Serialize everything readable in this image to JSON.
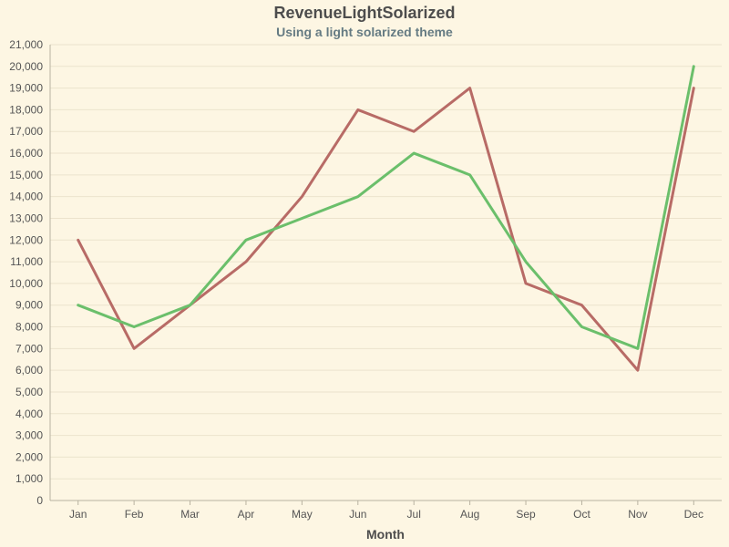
{
  "chart_data": {
    "type": "line",
    "title": "RevenueLightSolarized",
    "subtitle": "Using a light solarized theme",
    "xlabel": "Month",
    "ylabel": "",
    "categories": [
      "Jan",
      "Feb",
      "Mar",
      "Apr",
      "May",
      "Jun",
      "Jul",
      "Aug",
      "Sep",
      "Oct",
      "Nov",
      "Dec"
    ],
    "ylim": [
      0,
      21000
    ],
    "y_tick_step": 1000,
    "grid": true,
    "legend": "none",
    "series": [
      {
        "color": "#b86b66",
        "values": [
          12000,
          7000,
          9000,
          11000,
          14000,
          18000,
          17000,
          19000,
          10000,
          9000,
          6000,
          19000
        ]
      },
      {
        "color": "#6bbf6b",
        "values": [
          9000,
          8000,
          9000,
          12000,
          13000,
          14000,
          16000,
          15000,
          11000,
          8000,
          7000,
          20000
        ]
      }
    ]
  }
}
